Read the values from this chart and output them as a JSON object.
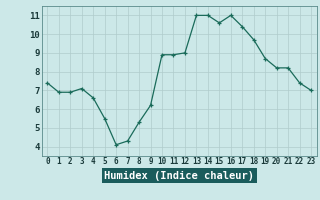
{
  "x": [
    0,
    1,
    2,
    3,
    4,
    5,
    6,
    7,
    8,
    9,
    10,
    11,
    12,
    13,
    14,
    15,
    16,
    17,
    18,
    19,
    20,
    21,
    22,
    23
  ],
  "y": [
    7.4,
    6.9,
    6.9,
    7.1,
    6.6,
    5.5,
    4.1,
    4.3,
    5.3,
    6.2,
    8.9,
    8.9,
    9.0,
    11.0,
    11.0,
    10.6,
    11.0,
    10.4,
    9.7,
    8.7,
    8.2,
    8.2,
    7.4,
    7.0
  ],
  "xlabel": "Humidex (Indice chaleur)",
  "xlim": [
    -0.5,
    23.5
  ],
  "ylim": [
    3.5,
    11.5
  ],
  "yticks": [
    4,
    5,
    6,
    7,
    8,
    9,
    10,
    11
  ],
  "xticks": [
    0,
    1,
    2,
    3,
    4,
    5,
    6,
    7,
    8,
    9,
    10,
    11,
    12,
    13,
    14,
    15,
    16,
    17,
    18,
    19,
    20,
    21,
    22,
    23
  ],
  "line_color": "#1a6b5a",
  "bg_color": "#cce8e8",
  "grid_color": "#b0cccc",
  "label_bg": "#1a5c5c",
  "label_fg": "#ffffff",
  "spine_color": "#5a8a8a"
}
